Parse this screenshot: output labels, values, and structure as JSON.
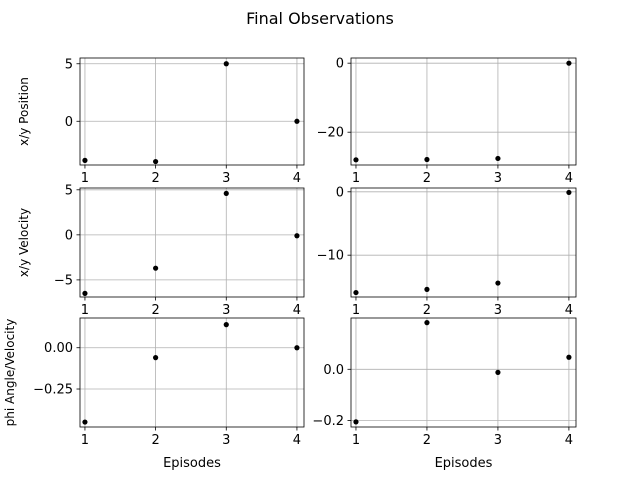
{
  "figure": {
    "title": "Final Observations"
  },
  "chart_data": [
    {
      "type": "scatter",
      "title": "",
      "xlabel": "",
      "ylabel": "x/y Position",
      "x": [
        1,
        2,
        3,
        4
      ],
      "values": [
        -3.4,
        -3.5,
        5.0,
        0.0
      ],
      "xlim": [
        0.93,
        4.1
      ],
      "ylim": [
        -3.8,
        5.5
      ],
      "xticks": [
        1,
        2,
        3,
        4
      ],
      "yticks": [
        5,
        0
      ],
      "ytick_labels": [
        "5",
        "0"
      ],
      "grid": true
    },
    {
      "type": "scatter",
      "title": "",
      "xlabel": "",
      "ylabel": "",
      "x": [
        1,
        2,
        3,
        4
      ],
      "values": [
        -28.0,
        -27.9,
        -27.6,
        0.0
      ],
      "xlim": [
        0.93,
        4.1
      ],
      "ylim": [
        -29.5,
        1.5
      ],
      "xticks": [
        1,
        2,
        3,
        4
      ],
      "yticks": [
        0,
        -20
      ],
      "ytick_labels": [
        "0",
        "−20"
      ],
      "grid": true
    },
    {
      "type": "scatter",
      "title": "",
      "xlabel": "",
      "ylabel": "x/y Velocity",
      "x": [
        1,
        2,
        3,
        4
      ],
      "values": [
        -6.5,
        -3.7,
        4.6,
        -0.1
      ],
      "xlim": [
        0.93,
        4.1
      ],
      "ylim": [
        -6.9,
        5.2
      ],
      "xticks": [
        1,
        2,
        3,
        4
      ],
      "yticks": [
        5,
        0,
        -5
      ],
      "ytick_labels": [
        "5",
        "0",
        "−5"
      ],
      "grid": true
    },
    {
      "type": "scatter",
      "title": "",
      "xlabel": "",
      "ylabel": "",
      "x": [
        1,
        2,
        3,
        4
      ],
      "values": [
        -15.9,
        -15.4,
        -14.4,
        -0.1
      ],
      "xlim": [
        0.93,
        4.1
      ],
      "ylim": [
        -16.6,
        0.6
      ],
      "xticks": [
        1,
        2,
        3,
        4
      ],
      "yticks": [
        0,
        -10
      ],
      "ytick_labels": [
        "0",
        "−10"
      ],
      "grid": true
    },
    {
      "type": "scatter",
      "title": "",
      "xlabel": "Episodes",
      "ylabel": "phi Angle/Velocity",
      "x": [
        1,
        2,
        3,
        4
      ],
      "values": [
        -0.45,
        -0.06,
        0.14,
        0.0
      ],
      "xlim": [
        0.93,
        4.1
      ],
      "ylim": [
        -0.48,
        0.18
      ],
      "xticks": [
        1,
        2,
        3,
        4
      ],
      "yticks": [
        0.0,
        -0.25
      ],
      "ytick_labels": [
        "0.00",
        "−0.25"
      ],
      "grid": true
    },
    {
      "type": "scatter",
      "title": "",
      "xlabel": "Episodes",
      "ylabel": "",
      "x": [
        1,
        2,
        3,
        4
      ],
      "values": [
        -0.205,
        0.182,
        -0.012,
        0.047
      ],
      "xlim": [
        0.93,
        4.1
      ],
      "ylim": [
        -0.225,
        0.2
      ],
      "xticks": [
        1,
        2,
        3,
        4
      ],
      "yticks": [
        0.0,
        -0.2
      ],
      "ytick_labels": [
        "0.0",
        "−0.2"
      ],
      "grid": true
    }
  ],
  "style": {
    "point_color": "#000000",
    "grid_color": "#b0b0b0",
    "axis_color": "#000000"
  }
}
